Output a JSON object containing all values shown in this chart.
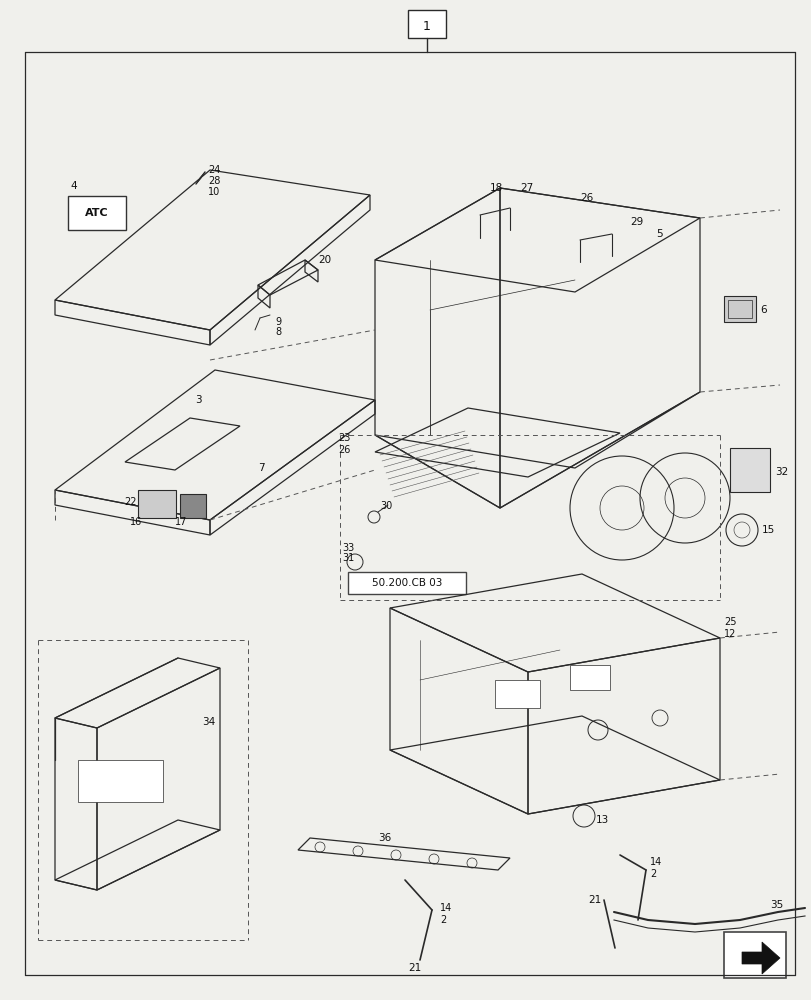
{
  "bg_color": "#f0f0ec",
  "line_color": "#2a2a2a",
  "lw": 0.9,
  "fig_w": 8.12,
  "fig_h": 10.0,
  "dpi": 100
}
